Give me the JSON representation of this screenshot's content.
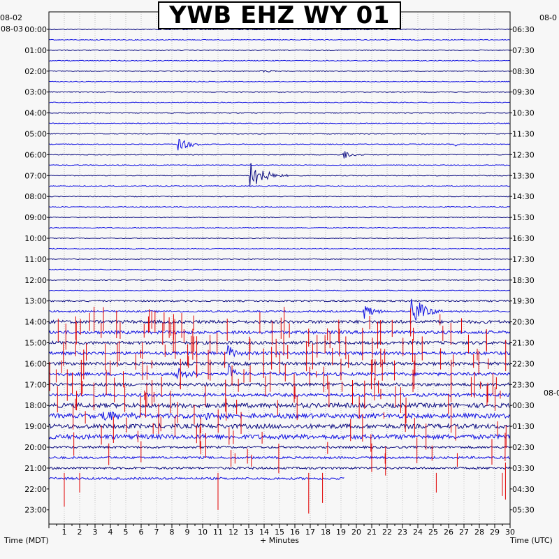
{
  "chart_data": {
    "type": "line",
    "title": "YWB EHZ WY 01",
    "xlabel": "+ Minutes",
    "ylabel_left": "Time (MDT)",
    "ylabel_right": "Time (UTC)",
    "date_labels_left": [
      "08-02",
      "08-03"
    ],
    "date_labels_right": [
      "08-0",
      "08-0"
    ],
    "x_ticks": [
      "1",
      "2",
      "3",
      "4",
      "5",
      "6",
      "7",
      "8",
      "9",
      "10",
      "11",
      "12",
      "13",
      "14",
      "15",
      "16",
      "17",
      "18",
      "19",
      "20",
      "21",
      "22",
      "23",
      "24",
      "25",
      "26",
      "27",
      "28",
      "29",
      "30"
    ],
    "xlim": [
      0,
      30
    ],
    "left_hour_labels": [
      "00:00",
      "01:00",
      "02:00",
      "03:00",
      "04:00",
      "05:00",
      "06:00",
      "07:00",
      "08:00",
      "09:00",
      "10:00",
      "11:00",
      "12:00",
      "13:00",
      "14:00",
      "15:00",
      "16:00",
      "17:00",
      "18:00",
      "19:00",
      "20:00",
      "21:00",
      "22:00",
      "23:00"
    ],
    "right_hour_labels": [
      "06:30",
      "07:30",
      "08:30",
      "09:30",
      "10:30",
      "11:30",
      "12:30",
      "13:30",
      "14:30",
      "15:30",
      "16:30",
      "17:30",
      "18:30",
      "19:30",
      "20:30",
      "21:30",
      "22:30",
      "23:30",
      "00:30",
      "01:30",
      "02:30",
      "03:30",
      "04:30",
      "05:30"
    ],
    "trace_colors": [
      "#0a0a80",
      "#1010e0"
    ],
    "clip_color": "#e00000",
    "traces_per_hour": 2,
    "recorded_traces": 44,
    "events": [
      {
        "trace": 4,
        "minute": 13.8,
        "amplitude": 3,
        "duration_min": 2
      },
      {
        "trace": 11,
        "minute": 8.4,
        "amplitude": 14,
        "duration_min": 1.8
      },
      {
        "trace": 11,
        "minute": 26.4,
        "amplitude": 3,
        "duration_min": 0.6
      },
      {
        "trace": 12,
        "minute": 19.2,
        "amplitude": 7,
        "duration_min": 1.5
      },
      {
        "trace": 14,
        "minute": 13.1,
        "amplitude": 22,
        "duration_min": 2.5
      },
      {
        "trace": 27,
        "minute": 20.5,
        "amplitude": 12,
        "duration_min": 2
      },
      {
        "trace": 27,
        "minute": 23.6,
        "amplitude": 28,
        "duration_min": 2
      },
      {
        "trace": 31,
        "minute": 11.6,
        "amplitude": 14,
        "duration_min": 1.5
      },
      {
        "trace": 33,
        "minute": 8.3,
        "amplitude": 10,
        "duration_min": 2.5
      },
      {
        "trace": 33,
        "minute": 11.7,
        "amplitude": 12,
        "duration_min": 1.5
      },
      {
        "trace": 37,
        "minute": 3.5,
        "amplitude": 9,
        "duration_min": 4
      },
      {
        "trace": 37,
        "minute": 10.0,
        "amplitude": 6,
        "duration_min": 3
      }
    ]
  }
}
